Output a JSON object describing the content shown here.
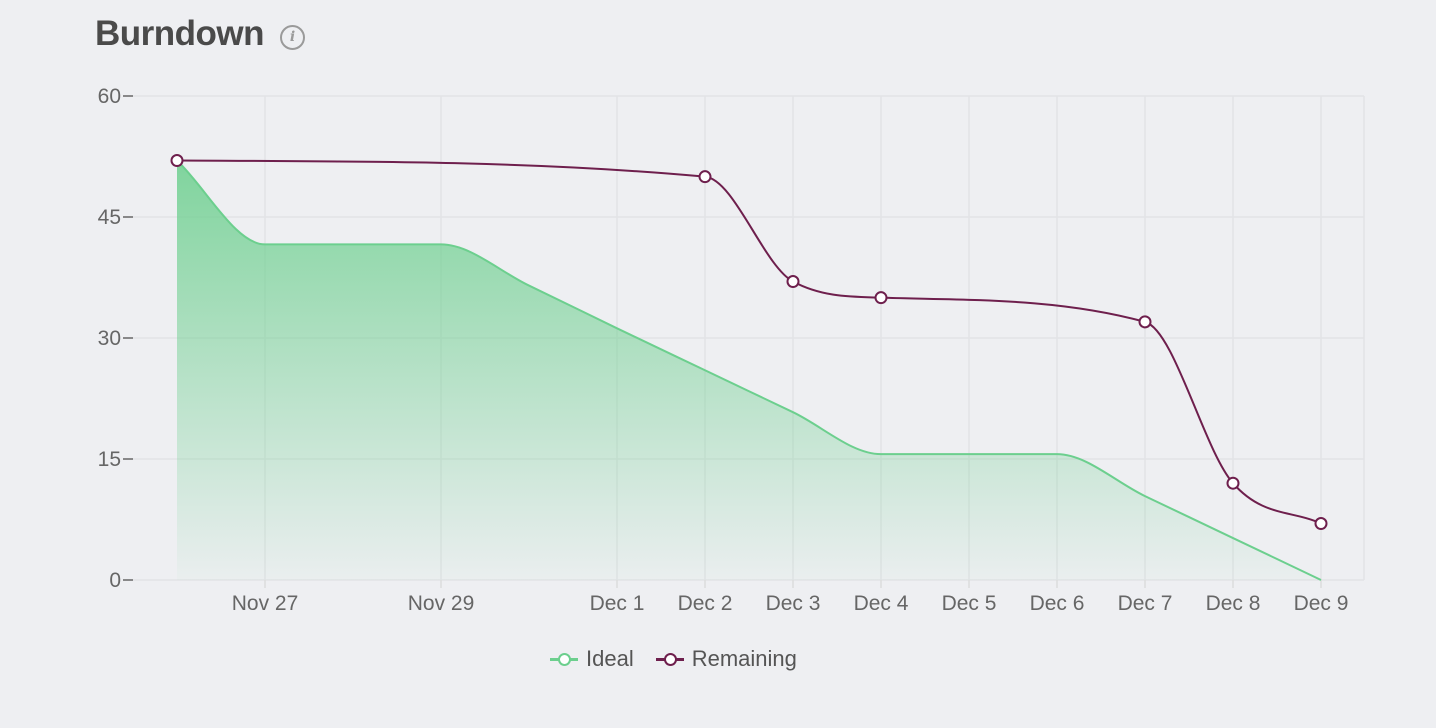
{
  "header": {
    "title": "Burndown",
    "info_icon": "info-icon"
  },
  "colors": {
    "ideal": "#6ccf8e",
    "remaining": "#6e1f4d",
    "grid": "#e2e3e6",
    "axis": "#666666"
  },
  "chart_data": {
    "type": "line",
    "title": "",
    "xlabel": "",
    "ylabel": "",
    "ylim": [
      0,
      60
    ],
    "yticks": [
      0,
      15,
      30,
      45,
      60
    ],
    "x_ticks": [
      {
        "label": "Nov 27",
        "day": 0
      },
      {
        "label": "Nov 29",
        "day": 2
      },
      {
        "label": "Dec 1",
        "day": 4
      },
      {
        "label": "Dec 2",
        "day": 5
      },
      {
        "label": "Dec 3",
        "day": 6
      },
      {
        "label": "Dec 4",
        "day": 7
      },
      {
        "label": "Dec 5",
        "day": 8
      },
      {
        "label": "Dec 6",
        "day": 9
      },
      {
        "label": "Dec 7",
        "day": 10
      },
      {
        "label": "Dec 8",
        "day": 11
      },
      {
        "label": "Dec 9",
        "day": 12
      }
    ],
    "grid": true,
    "legend_position": "bottom",
    "series": [
      {
        "name": "Ideal",
        "color": "#6ccf8e",
        "filled": true,
        "points": [
          [
            -1,
            52
          ],
          [
            0,
            41.6
          ],
          [
            2,
            41.6
          ],
          [
            3,
            36.5
          ],
          [
            4,
            31.2
          ],
          [
            5,
            26
          ],
          [
            6,
            20.8
          ],
          [
            7,
            15.6
          ],
          [
            8,
            15.6
          ],
          [
            9,
            15.6
          ],
          [
            10,
            10.4
          ],
          [
            11,
            5.2
          ],
          [
            12,
            0
          ]
        ]
      },
      {
        "name": "Remaining",
        "color": "#6e1f4d",
        "filled": false,
        "points": [
          [
            -1,
            52
          ],
          [
            5,
            50
          ],
          [
            6,
            37
          ],
          [
            7,
            35
          ],
          [
            10,
            32
          ],
          [
            11,
            12
          ],
          [
            12,
            7
          ]
        ]
      }
    ]
  },
  "legend": {
    "items": [
      "Ideal",
      "Remaining"
    ]
  }
}
